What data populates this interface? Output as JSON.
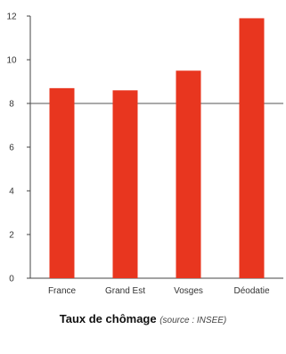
{
  "chart_data": {
    "type": "bar",
    "categories": [
      "France",
      "Grand Est",
      "Vosges",
      "Déodatie"
    ],
    "values": [
      8.7,
      8.6,
      9.5,
      11.9
    ],
    "ylim": [
      0,
      12
    ],
    "yticks": [
      0,
      2,
      4,
      6,
      8,
      10,
      12
    ],
    "grid": "horizontal at 8",
    "bar_color": "#e8361f",
    "title": "Taux de chômage",
    "source": "(source : INSEE)"
  }
}
